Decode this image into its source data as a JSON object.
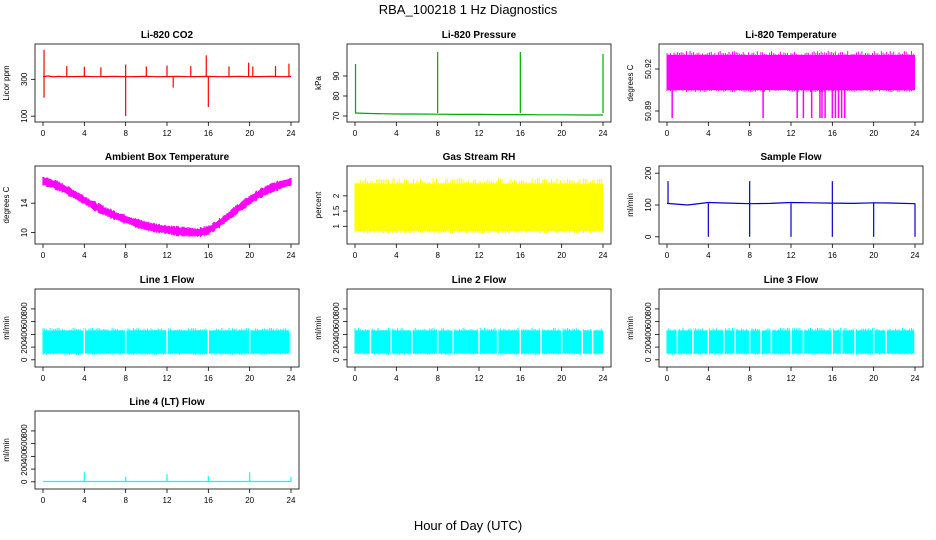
{
  "figure": {
    "title": "RBA_100218  1 Hz Diagnostics",
    "xlabel": "Hour of Day (UTC)"
  },
  "chart_data": [
    {
      "type": "line",
      "title": "Li-820 CO2",
      "ylabel": "Licor ppm",
      "color": "#ff0000",
      "xlim": [
        0,
        24
      ],
      "ylim": [
        90,
        470
      ],
      "xticks": [
        0,
        4,
        8,
        12,
        16,
        20,
        24
      ],
      "yticks": [
        100,
        300
      ],
      "series": [
        {
          "x": [
            0,
            0.5,
            1,
            1.5,
            2,
            3,
            4,
            5,
            6,
            7,
            8,
            9,
            10,
            11,
            12,
            13,
            14,
            15,
            16,
            17,
            18,
            19,
            20,
            21,
            22,
            23,
            24
          ],
          "y": [
            315,
            318,
            313,
            316,
            314,
            315,
            316,
            314,
            315,
            316,
            314,
            315,
            316,
            314,
            315,
            316,
            314,
            315,
            316,
            314,
            315,
            316,
            314,
            315,
            316,
            314,
            315
          ]
        }
      ],
      "spikes": [
        {
          "x": 0.1,
          "y": 460
        },
        {
          "x": 0.1,
          "y": 200
        },
        {
          "x": 2.3,
          "y": 372
        },
        {
          "x": 4.0,
          "y": 368
        },
        {
          "x": 5.6,
          "y": 365
        },
        {
          "x": 8.0,
          "y": 100
        },
        {
          "x": 8.0,
          "y": 380
        },
        {
          "x": 10.0,
          "y": 370
        },
        {
          "x": 12.0,
          "y": 375
        },
        {
          "x": 12.6,
          "y": 255
        },
        {
          "x": 14.3,
          "y": 372
        },
        {
          "x": 15.8,
          "y": 430
        },
        {
          "x": 16.0,
          "y": 150
        },
        {
          "x": 18.0,
          "y": 370
        },
        {
          "x": 19.9,
          "y": 390
        },
        {
          "x": 20.3,
          "y": 370
        },
        {
          "x": 22.5,
          "y": 372
        },
        {
          "x": 23.8,
          "y": 385
        }
      ]
    },
    {
      "type": "line",
      "title": "Li-820 Pressure",
      "ylabel": "kPa",
      "color": "#00aa00",
      "xlim": [
        0,
        24
      ],
      "ylim": [
        69,
        104
      ],
      "xticks": [
        0,
        4,
        8,
        12,
        16,
        20,
        24
      ],
      "yticks": [
        70,
        80,
        90
      ],
      "series": [
        {
          "x": [
            0,
            1,
            2,
            4,
            6,
            8,
            10,
            12,
            14,
            16,
            18,
            20,
            22,
            24
          ],
          "y": [
            71.5,
            71.3,
            71.2,
            71.0,
            71.0,
            70.9,
            70.8,
            70.8,
            70.7,
            70.7,
            70.6,
            70.6,
            70.5,
            70.5
          ]
        }
      ],
      "spikes": [
        {
          "x": 0.05,
          "y": 96
        },
        {
          "x": 8.0,
          "y": 102
        },
        {
          "x": 16.0,
          "y": 102
        },
        {
          "x": 24.0,
          "y": 101
        }
      ]
    },
    {
      "type": "area",
      "title": "Li-820 Temperature",
      "ylabel": "degrees C",
      "color": "#ff00ff",
      "xlim": [
        0,
        24
      ],
      "ylim": [
        50.885,
        50.935
      ],
      "xticks": [
        0,
        4,
        8,
        12,
        16,
        20,
        24
      ],
      "yticks": [
        50.89,
        50.92
      ],
      "band": {
        "x_from": 0,
        "x_to": 24,
        "y_low": 50.905,
        "y_high": 50.93
      },
      "drops": [
        0.5,
        9.3,
        12.6,
        13.2,
        14.0,
        14.8,
        15.0,
        15.3,
        16.0,
        16.3,
        16.6,
        16.9,
        17.2
      ]
    },
    {
      "type": "line",
      "title": "Ambient Box Temperature",
      "ylabel": "degrees C",
      "color": "#ff00ff",
      "xlim": [
        0,
        24
      ],
      "ylim": [
        9,
        18.5
      ],
      "xticks": [
        0,
        4,
        8,
        12,
        16,
        20,
        24
      ],
      "yticks": [
        10,
        14
      ],
      "series": [
        {
          "x": [
            0,
            1,
            2,
            3,
            4,
            5,
            6,
            7,
            8,
            9,
            10,
            11,
            12,
            13,
            14,
            15,
            16,
            17,
            18,
            19,
            20,
            21,
            22,
            23,
            24
          ],
          "y": [
            17.0,
            16.6,
            16.0,
            15.2,
            14.4,
            13.6,
            12.9,
            12.3,
            11.8,
            11.3,
            10.9,
            10.6,
            10.4,
            10.2,
            10.1,
            10.0,
            10.3,
            11.2,
            12.3,
            13.4,
            14.4,
            15.3,
            16.0,
            16.5,
            16.9
          ]
        }
      ],
      "band_halfwidth": 0.7
    },
    {
      "type": "area",
      "title": "Gas Stream RH",
      "ylabel": "percent",
      "color": "#ffff00",
      "xlim": [
        0,
        24
      ],
      "ylim": [
        0.55,
        2.85
      ],
      "xticks": [
        0,
        4,
        8,
        12,
        16,
        20,
        24
      ],
      "yticks": [
        1.0,
        1.5,
        2.0
      ],
      "band": {
        "x_from": 0,
        "x_to": 24,
        "y_low": 0.85,
        "y_high": 2.4
      }
    },
    {
      "type": "line",
      "title": "Sample Flow",
      "ylabel": "ml/min",
      "color": "#0000cc",
      "xlim": [
        0,
        24
      ],
      "ylim": [
        -10,
        210
      ],
      "xticks": [
        0,
        4,
        8,
        12,
        16,
        20,
        24
      ],
      "yticks": [
        0,
        100,
        200
      ],
      "series": [
        {
          "x": [
            0,
            2,
            4,
            6,
            8,
            10,
            12,
            14,
            16,
            18,
            20,
            22,
            24
          ],
          "y": [
            105,
            100,
            108,
            106,
            104,
            105,
            108,
            107,
            106,
            105,
            107,
            106,
            104
          ]
        }
      ],
      "spikes": [
        {
          "x": 0.1,
          "y": 175
        },
        {
          "x": 4.0,
          "y": 0
        },
        {
          "x": 8.0,
          "y": 175
        },
        {
          "x": 8.0,
          "y": 0
        },
        {
          "x": 12.0,
          "y": 0
        },
        {
          "x": 16.0,
          "y": 175
        },
        {
          "x": 16.0,
          "y": 0
        },
        {
          "x": 20.0,
          "y": 0
        },
        {
          "x": 24.0,
          "y": 0
        }
      ]
    },
    {
      "type": "area",
      "title": "Line 1 Flow",
      "ylabel": "ml/min",
      "color": "#00ffff",
      "xlim": [
        0,
        24
      ],
      "ylim": [
        -50,
        1050
      ],
      "xticks": [
        0,
        4,
        8,
        12,
        16,
        20,
        24
      ],
      "yticks": [
        0,
        200,
        400,
        600,
        800
      ],
      "band": {
        "x_from": 0,
        "x_to": 24,
        "y_low": 100,
        "y_high": 460
      },
      "gaps": [
        4.0,
        8.0,
        12.0,
        16.0,
        20.0,
        23.9
      ]
    },
    {
      "type": "area",
      "title": "Line 2 Flow",
      "ylabel": "ml/min",
      "color": "#00ffff",
      "xlim": [
        0,
        24
      ],
      "ylim": [
        -50,
        1050
      ],
      "xticks": [
        0,
        4,
        8,
        12,
        16,
        20,
        24
      ],
      "yticks": [
        0,
        200,
        400,
        600,
        800
      ],
      "band": {
        "x_from": 0,
        "x_to": 24,
        "y_low": 100,
        "y_high": 460
      },
      "gaps": [
        1.5,
        3.5,
        5.5,
        8.0,
        9.5,
        12.0,
        13.8,
        16.0,
        18.0,
        20.0,
        22.0,
        23.0
      ]
    },
    {
      "type": "area",
      "title": "Line 3 Flow",
      "ylabel": "ml/min",
      "color": "#00ffff",
      "xlim": [
        0,
        24
      ],
      "ylim": [
        -50,
        1050
      ],
      "xticks": [
        0,
        4,
        8,
        12,
        16,
        20,
        24
      ],
      "yticks": [
        0,
        200,
        400,
        600,
        800
      ],
      "band": {
        "x_from": 0,
        "x_to": 24,
        "y_low": 100,
        "y_high": 460
      },
      "gaps": [
        1.0,
        2.5,
        4.0,
        5.5,
        6.6,
        8.0,
        9.1,
        10.1,
        12.0,
        13.2,
        16.0,
        16.9,
        18.2,
        20.0,
        21.2,
        24.0
      ]
    },
    {
      "type": "line",
      "title": "Line 4 (LT) Flow",
      "ylabel": "ml/min",
      "color": "#00ffff",
      "xlim": [
        0,
        24
      ],
      "ylim": [
        -50,
        1050
      ],
      "xticks": [
        0,
        4,
        8,
        12,
        16,
        20,
        24
      ],
      "yticks": [
        0,
        200,
        400,
        600,
        800
      ],
      "series": [
        {
          "x": [
            0,
            2,
            4,
            6,
            8,
            10,
            12,
            14,
            16,
            18,
            20,
            22,
            24
          ],
          "y": [
            5,
            5,
            5,
            5,
            5,
            5,
            5,
            5,
            5,
            5,
            5,
            5,
            5
          ]
        }
      ],
      "spikes": [
        {
          "x": 4.0,
          "y": 150
        },
        {
          "x": 8.0,
          "y": 80
        },
        {
          "x": 12.0,
          "y": 120
        },
        {
          "x": 16.0,
          "y": 90
        },
        {
          "x": 20.0,
          "y": 150
        },
        {
          "x": 24.0,
          "y": 80
        }
      ]
    }
  ]
}
